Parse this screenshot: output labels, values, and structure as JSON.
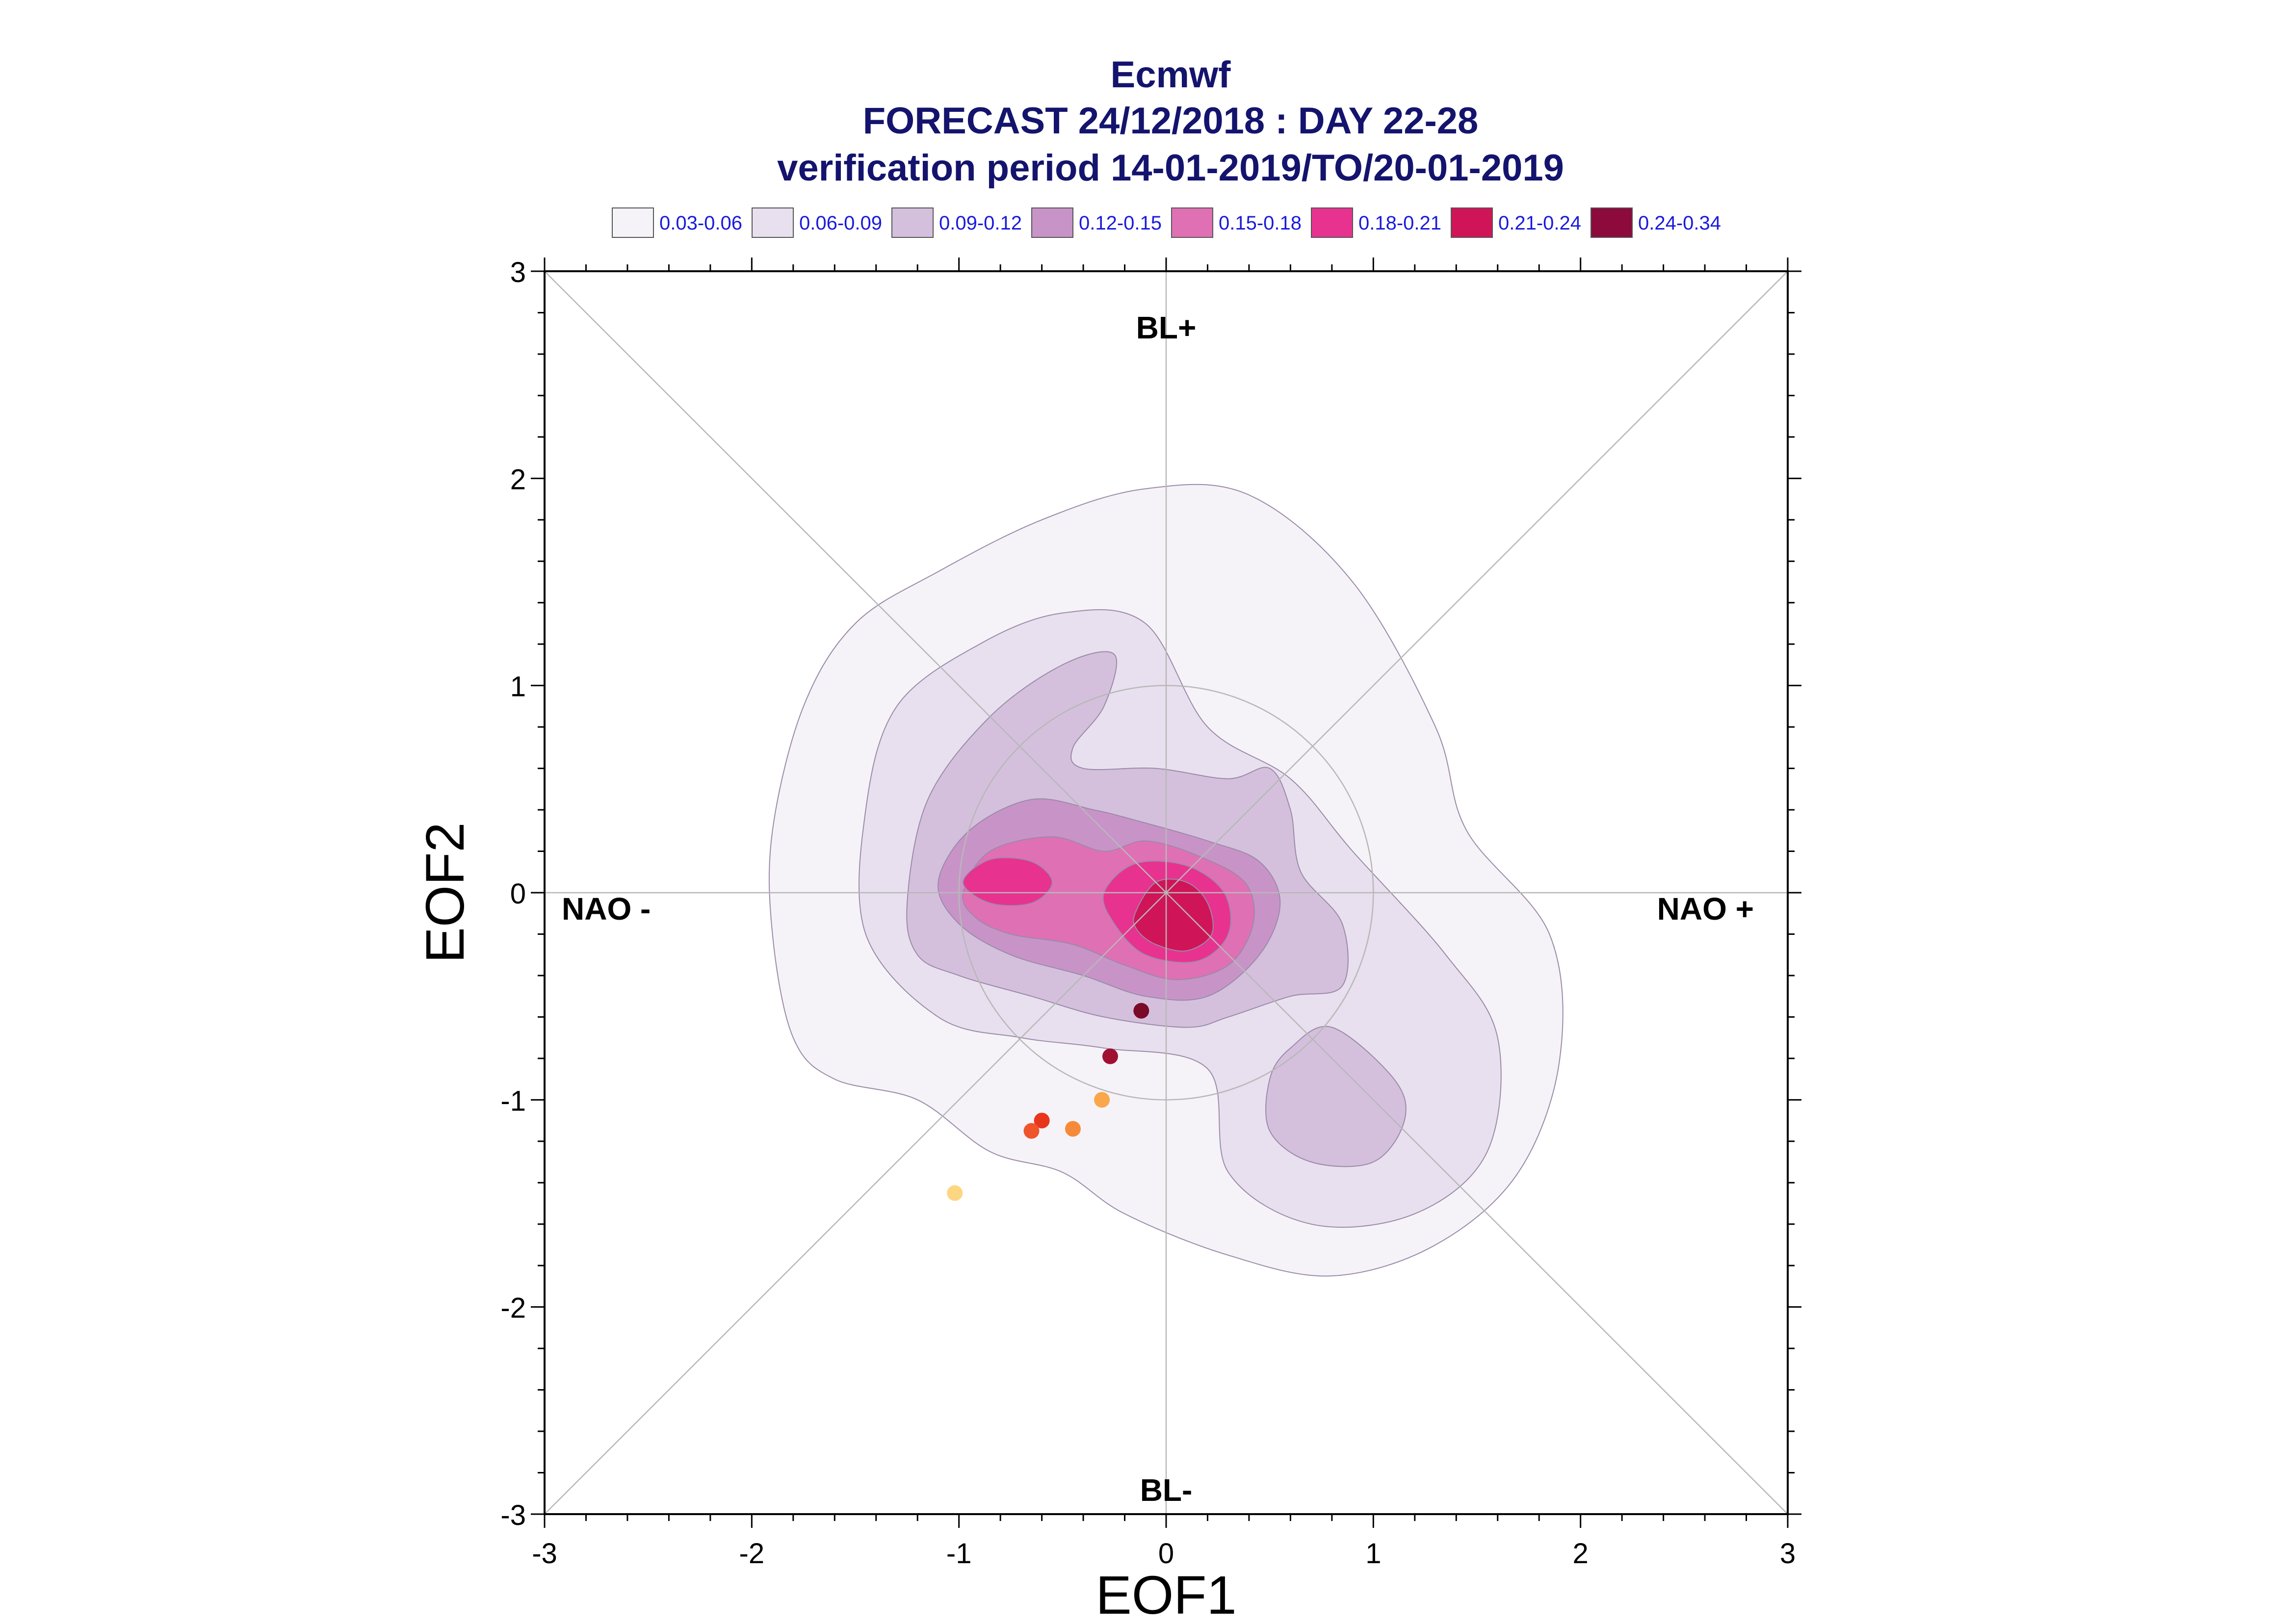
{
  "chart_data": {
    "type": "contour",
    "title": "Ecmwf",
    "subtitle": "FORECAST 24/12/2018 : DAY 22-28",
    "subtitle2": "verification period 14-01-2019/TO/20-01-2019",
    "xlabel": "EOF1",
    "ylabel": "EOF2",
    "xlim": [
      -3,
      3
    ],
    "ylim": [
      -3,
      3
    ],
    "xticks": [
      "-3",
      "-2",
      "-1",
      "0",
      "1",
      "2",
      "3"
    ],
    "yticks": [
      "-3",
      "-2",
      "-1",
      "0",
      "1",
      "2",
      "3"
    ],
    "quadrant_labels": {
      "top": "BL+",
      "bottom": "BL-",
      "left": "NAO -",
      "right": "NAO +"
    },
    "legend": {
      "position": "top",
      "entries": [
        {
          "label": "0.03-0.06",
          "color": "#f6f3f8"
        },
        {
          "label": "0.06-0.09",
          "color": "#e8e0ee"
        },
        {
          "label": "0.09-0.12",
          "color": "#d4c0dc"
        },
        {
          "label": "0.12-0.15",
          "color": "#c894c8"
        },
        {
          "label": "0.15-0.18",
          "color": "#e070b4"
        },
        {
          "label": "0.18-0.21",
          "color": "#e83290"
        },
        {
          "label": "0.21-0.24",
          "color": "#d01458"
        },
        {
          "label": "0.24-0.34",
          "color": "#8c0a3c"
        }
      ]
    },
    "contours": [
      {
        "level": "0.03-0.06",
        "color": "#f6f3f8",
        "points": [
          [
            -1.8,
            -0.7
          ],
          [
            -1.9,
            -0.2
          ],
          [
            -1.9,
            0.3
          ],
          [
            -1.75,
            0.9
          ],
          [
            -1.5,
            1.3
          ],
          [
            -1.1,
            1.55
          ],
          [
            -0.6,
            1.8
          ],
          [
            -0.1,
            1.95
          ],
          [
            0.4,
            1.92
          ],
          [
            0.9,
            1.5
          ],
          [
            1.3,
            0.8
          ],
          [
            1.45,
            0.3
          ],
          [
            1.85,
            -0.2
          ],
          [
            1.9,
            -0.8
          ],
          [
            1.7,
            -1.35
          ],
          [
            1.3,
            -1.7
          ],
          [
            0.8,
            -1.85
          ],
          [
            0.3,
            -1.75
          ],
          [
            -0.2,
            -1.55
          ],
          [
            -0.5,
            -1.35
          ],
          [
            -0.85,
            -1.25
          ],
          [
            -1.2,
            -1.0
          ],
          [
            -1.6,
            -0.9
          ]
        ]
      },
      {
        "level": "0.06-0.09",
        "color": "#e8e0ee",
        "points": [
          [
            -1.45,
            -0.2
          ],
          [
            -1.45,
            0.4
          ],
          [
            -1.3,
            0.9
          ],
          [
            -0.9,
            1.2
          ],
          [
            -0.5,
            1.35
          ],
          [
            -0.1,
            1.3
          ],
          [
            0.2,
            0.8
          ],
          [
            0.6,
            0.55
          ],
          [
            0.9,
            0.2
          ],
          [
            1.35,
            -0.3
          ],
          [
            1.6,
            -0.7
          ],
          [
            1.55,
            -1.25
          ],
          [
            1.2,
            -1.55
          ],
          [
            0.7,
            -1.6
          ],
          [
            0.3,
            -1.35
          ],
          [
            0.2,
            -0.85
          ],
          [
            -0.3,
            -0.75
          ],
          [
            -0.7,
            -0.7
          ],
          [
            -1.1,
            -0.6
          ]
        ]
      },
      {
        "level": "0.09-0.12",
        "color": "#d4c0dc",
        "points": [
          [
            -1.25,
            -0.05
          ],
          [
            -1.15,
            0.45
          ],
          [
            -0.85,
            0.85
          ],
          [
            -0.5,
            1.1
          ],
          [
            -0.25,
            1.15
          ],
          [
            -0.3,
            0.9
          ],
          [
            -0.45,
            0.7
          ],
          [
            -0.4,
            0.6
          ],
          [
            -0.05,
            0.6
          ],
          [
            0.3,
            0.55
          ],
          [
            0.5,
            0.6
          ],
          [
            0.6,
            0.4
          ],
          [
            0.65,
            0.1
          ],
          [
            0.85,
            -0.15
          ],
          [
            0.85,
            -0.45
          ],
          [
            0.6,
            -0.5
          ],
          [
            0.3,
            -0.6
          ],
          [
            0.1,
            -0.65
          ],
          [
            -0.3,
            -0.6
          ],
          [
            -0.65,
            -0.5
          ],
          [
            -1.0,
            -0.4
          ],
          [
            -1.2,
            -0.3
          ]
        ]
      },
      {
        "level": "0.09-0.12",
        "color": "#d4c0dc",
        "points": [
          [
            0.5,
            -0.9
          ],
          [
            0.6,
            -0.75
          ],
          [
            0.8,
            -0.65
          ],
          [
            1.1,
            -0.9
          ],
          [
            1.15,
            -1.1
          ],
          [
            1.0,
            -1.3
          ],
          [
            0.7,
            -1.3
          ],
          [
            0.5,
            -1.15
          ]
        ]
      },
      {
        "level": "0.12-0.15",
        "color": "#c894c8",
        "points": [
          [
            -1.1,
            0.05
          ],
          [
            -0.95,
            0.3
          ],
          [
            -0.65,
            0.45
          ],
          [
            -0.35,
            0.4
          ],
          [
            -0.15,
            0.35
          ],
          [
            0.2,
            0.25
          ],
          [
            0.45,
            0.15
          ],
          [
            0.55,
            -0.05
          ],
          [
            0.45,
            -0.3
          ],
          [
            0.2,
            -0.5
          ],
          [
            -0.1,
            -0.5
          ],
          [
            -0.4,
            -0.4
          ],
          [
            -0.75,
            -0.3
          ],
          [
            -1.0,
            -0.15
          ]
        ]
      },
      {
        "level": "0.15-0.18",
        "color": "#e070b4",
        "points": [
          [
            -0.98,
            0.0
          ],
          [
            -0.85,
            0.2
          ],
          [
            -0.55,
            0.27
          ],
          [
            -0.3,
            0.2
          ],
          [
            -0.1,
            0.25
          ],
          [
            0.15,
            0.18
          ],
          [
            0.38,
            0.05
          ],
          [
            0.42,
            -0.15
          ],
          [
            0.3,
            -0.35
          ],
          [
            0.05,
            -0.42
          ],
          [
            -0.2,
            -0.35
          ],
          [
            -0.45,
            -0.25
          ],
          [
            -0.75,
            -0.2
          ],
          [
            -0.92,
            -0.12
          ]
        ]
      },
      {
        "level": "0.18-0.21",
        "color": "#e83290",
        "points": [
          [
            -0.98,
            0.05
          ],
          [
            -0.85,
            0.16
          ],
          [
            -0.65,
            0.15
          ],
          [
            -0.55,
            0.05
          ],
          [
            -0.65,
            -0.05
          ],
          [
            -0.85,
            -0.05
          ]
        ]
      },
      {
        "level": "0.18-0.21",
        "color": "#e83290",
        "points": [
          [
            -0.3,
            0.0
          ],
          [
            -0.15,
            0.14
          ],
          [
            0.1,
            0.13
          ],
          [
            0.28,
            0.0
          ],
          [
            0.3,
            -0.2
          ],
          [
            0.15,
            -0.33
          ],
          [
            -0.1,
            -0.3
          ],
          [
            -0.25,
            -0.15
          ]
        ]
      },
      {
        "level": "0.21-0.24",
        "color": "#d01458",
        "points": [
          [
            -0.15,
            -0.1
          ],
          [
            -0.05,
            0.05
          ],
          [
            0.1,
            0.05
          ],
          [
            0.2,
            -0.05
          ],
          [
            0.22,
            -0.2
          ],
          [
            0.1,
            -0.28
          ],
          [
            -0.05,
            -0.25
          ],
          [
            -0.14,
            -0.18
          ]
        ]
      }
    ],
    "points": [
      {
        "x": -0.12,
        "y": -0.57,
        "color": "#7a0a28"
      },
      {
        "x": -0.27,
        "y": -0.79,
        "color": "#a01030"
      },
      {
        "x": -0.31,
        "y": -1.0,
        "color": "#f9a74a"
      },
      {
        "x": -0.6,
        "y": -1.1,
        "color": "#e8361c"
      },
      {
        "x": -0.65,
        "y": -1.15,
        "color": "#f0542a"
      },
      {
        "x": -0.45,
        "y": -1.14,
        "color": "#f58b3a"
      },
      {
        "x": -1.02,
        "y": -1.45,
        "color": "#fdd682"
      }
    ],
    "reference_circle_radius": 1,
    "grid": false
  }
}
